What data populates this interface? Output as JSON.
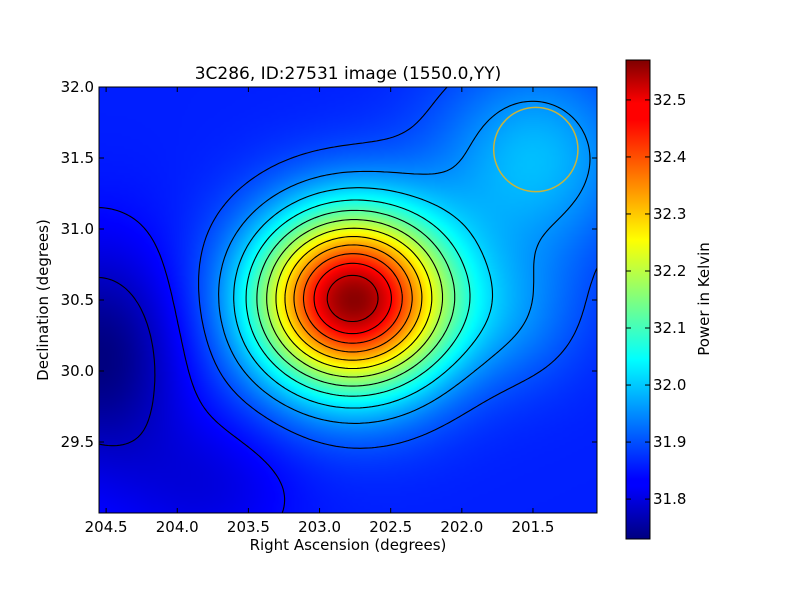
{
  "chart_data": {
    "type": "heatmap",
    "title": "3C286, ID:27531 image (1550.0,YY)",
    "xlabel": "Right Ascension (degrees)",
    "ylabel": "Declination (degrees)",
    "colorbar_label": "Power in Kelvin",
    "colormap": "jet",
    "xlim": [
      204.55,
      201.05
    ],
    "ylim": [
      29.0,
      32.0
    ],
    "x_ticks": [
      204.5,
      204.0,
      203.5,
      203.0,
      202.5,
      202.0,
      201.5
    ],
    "x_tick_labels": [
      "204.5",
      "204.0",
      "203.5",
      "203.0",
      "202.5",
      "202.0",
      "201.5"
    ],
    "y_ticks": [
      29.5,
      30.0,
      30.5,
      31.0,
      31.5,
      32.0
    ],
    "y_tick_labels": [
      "29.5",
      "30.0",
      "30.5",
      "31.0",
      "31.5",
      "32.0"
    ],
    "color_range": [
      31.73,
      32.57
    ],
    "colorbar_ticks": [
      31.8,
      31.9,
      32.0,
      32.1,
      32.2,
      32.3,
      32.4,
      32.5
    ],
    "colorbar_tick_labels": [
      "31.8",
      "31.9",
      "32.0",
      "32.1",
      "32.2",
      "32.3",
      "32.4",
      "32.5"
    ],
    "peak": {
      "ra": 202.77,
      "dec": 30.51,
      "value": 32.57
    },
    "background_min": 31.73,
    "beam_circle": {
      "ra": 201.48,
      "dec": 31.56,
      "radius_deg": 0.37,
      "color": "#c8b43c"
    },
    "contour_color": "#000000",
    "contour_count": 14
  }
}
